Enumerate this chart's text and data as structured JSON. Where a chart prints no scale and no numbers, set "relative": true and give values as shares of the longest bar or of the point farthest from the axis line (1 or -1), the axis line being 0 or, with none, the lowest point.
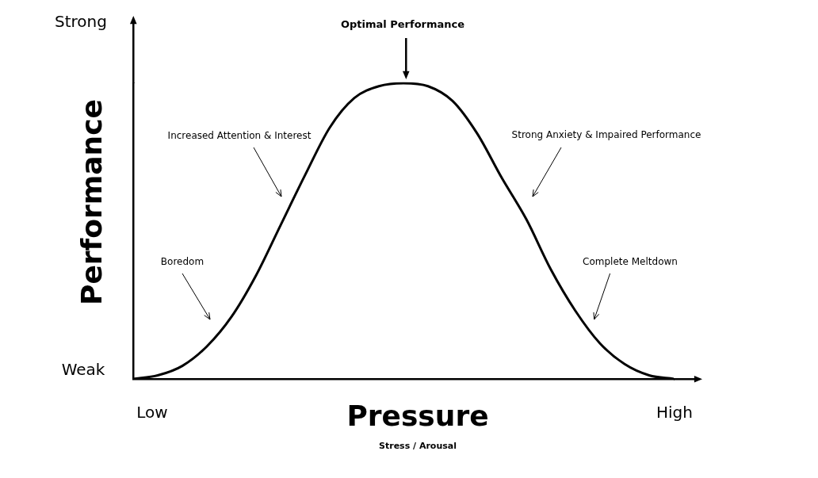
{
  "chart_data": {
    "type": "line",
    "relative": true,
    "xlabel": "Pressure",
    "ylabel": "Performance",
    "categories": [
      null,
      null,
      null,
      null,
      null,
      null,
      null,
      null,
      null,
      null,
      null,
      null,
      null,
      null,
      null,
      null,
      null,
      null,
      null,
      null,
      null,
      null,
      null
    ],
    "series": [
      {
        "color": "#000000",
        "values": [
          0,
          0.012,
          0.044,
          0.11,
          0.21,
          0.35,
          0.52,
          0.69,
          0.85,
          0.95,
          0.99,
          1,
          0.99,
          0.94,
          0.83,
          0.68,
          0.54,
          0.37,
          0.23,
          0.12,
          0.05,
          0.012,
          0
        ]
      }
    ],
    "annotations": [
      "Optimal Performance",
      "Increased Attention & Interest",
      "Boredom",
      "Strong Anxiety & Impaired Performance",
      "Complete Meltdown",
      "Strong",
      "Weak",
      "Low",
      "High",
      "Stress / Arousal"
    ],
    "grid": false,
    "legend": false
  }
}
